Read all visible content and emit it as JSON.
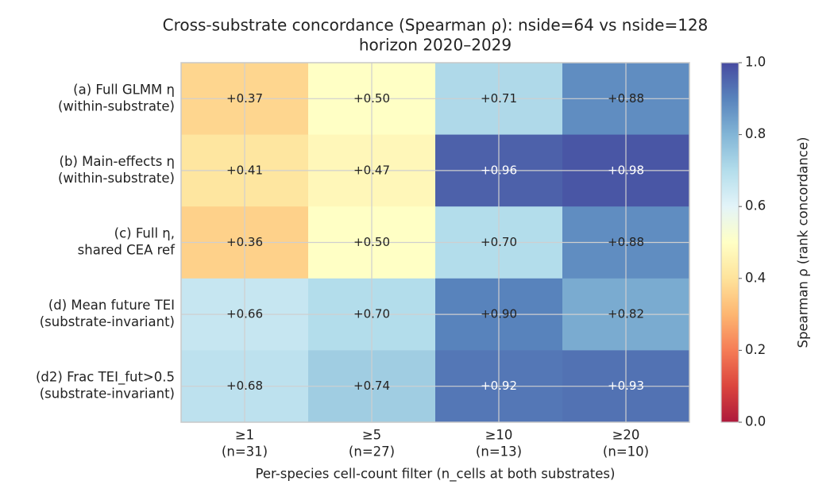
{
  "chart_data": {
    "type": "heatmap",
    "title": "Cross-substrate concordance (Spearman ρ): nside=64 vs nside=128",
    "subtitle": "horizon 2020–2029",
    "x_label": "Per-species cell-count filter (n_cells at both substrates)",
    "categories": [
      [
        "≥1",
        "(n=31)"
      ],
      [
        "≥5",
        "(n=27)"
      ],
      [
        "≥10",
        "(n=13)"
      ],
      [
        "≥20",
        "(n=10)"
      ]
    ],
    "rows": [
      [
        "(a) Full GLMM η",
        "(within-substrate)"
      ],
      [
        "(b) Main-effects η",
        "(within-substrate)"
      ],
      [
        "(c) Full η,",
        "shared CEA ref"
      ],
      [
        "(d) Mean future TEI",
        "(substrate-invariant)"
      ],
      [
        "(d2) Frac TEI_fut>0.5",
        "(substrate-invariant)"
      ]
    ],
    "values": [
      [
        0.37,
        0.5,
        0.71,
        0.88
      ],
      [
        0.41,
        0.47,
        0.96,
        0.98
      ],
      [
        0.36,
        0.5,
        0.7,
        0.88
      ],
      [
        0.66,
        0.7,
        0.9,
        0.82
      ],
      [
        0.68,
        0.74,
        0.92,
        0.93
      ]
    ],
    "value_labels": [
      [
        "+0.37",
        "+0.50",
        "+0.71",
        "+0.88"
      ],
      [
        "+0.41",
        "+0.47",
        "+0.96",
        "+0.98"
      ],
      [
        "+0.36",
        "+0.50",
        "+0.70",
        "+0.88"
      ],
      [
        "+0.66",
        "+0.70",
        "+0.90",
        "+0.82"
      ],
      [
        "+0.68",
        "+0.74",
        "+0.92",
        "+0.93"
      ]
    ],
    "colormap": "RdYlBu",
    "grid": true,
    "colorbar": {
      "label": "Spearman ρ (rank concordance)",
      "lim": [
        0,
        1
      ],
      "ticks": [
        {
          "value": 0,
          "label": "0.0"
        },
        0.2,
        0.4,
        0.6,
        0.8,
        {
          "value": 1,
          "label": "1.0"
        }
      ]
    }
  }
}
